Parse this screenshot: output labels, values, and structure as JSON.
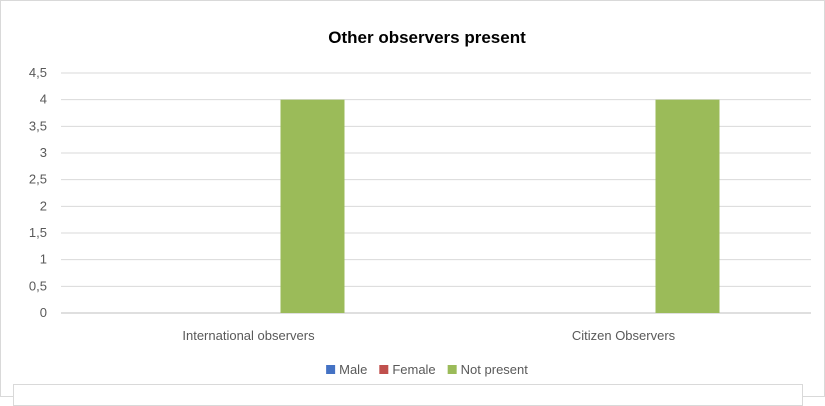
{
  "chart_data": {
    "type": "bar",
    "title": "Other observers present",
    "xlabel": "",
    "ylabel": "",
    "categories": [
      "International observers",
      "Citizen Observers"
    ],
    "series": [
      {
        "name": "Male",
        "color": "#4472c4",
        "values": [
          0,
          0
        ]
      },
      {
        "name": "Female",
        "color": "#c0504d",
        "values": [
          0,
          0
        ]
      },
      {
        "name": "Not present",
        "color": "#9bbb59",
        "values": [
          4,
          4
        ]
      }
    ],
    "ylim": [
      0,
      4.5
    ],
    "yticks": [
      "0",
      "0,5",
      "1",
      "1,5",
      "2",
      "2,5",
      "3",
      "3,5",
      "4",
      "4,5"
    ],
    "grid": true,
    "legend_position": "bottom"
  }
}
